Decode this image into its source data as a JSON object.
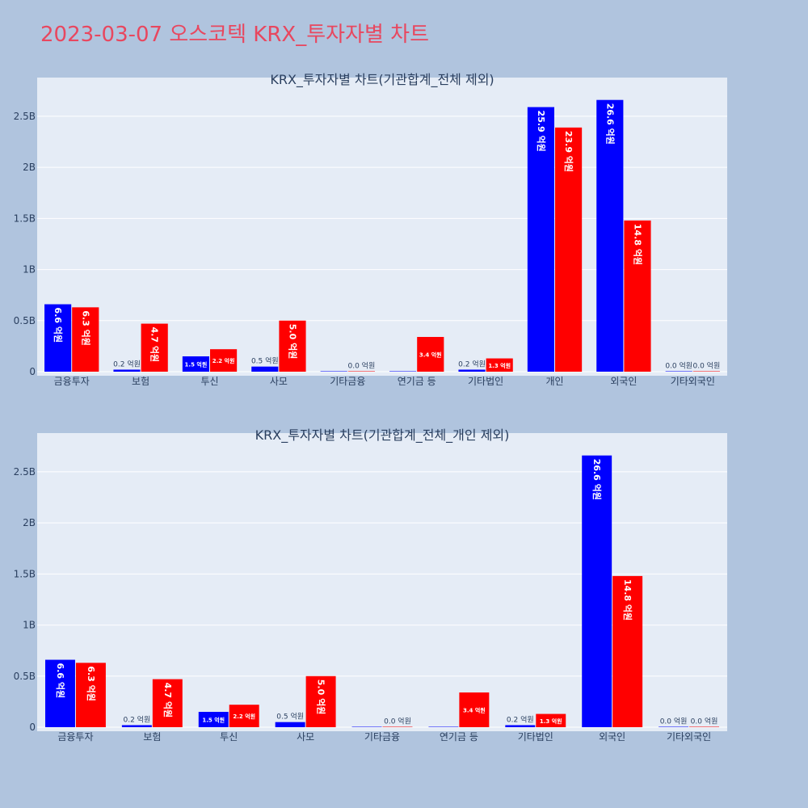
{
  "page_title": "2023-03-07 오스코텍 KRX_투자자별 차트",
  "colors": {
    "buy": "#0000ff",
    "sell": "#ff0000",
    "plot_bg": "#e5ecf6",
    "page_bg": "#b0c4de",
    "title": "#e8475f"
  },
  "chart_data": [
    {
      "type": "bar",
      "title": "KRX_투자자별 차트(기관합계_전체 제외)",
      "categories": [
        "금융투자",
        "보험",
        "투신",
        "사모",
        "기타금융",
        "연기금 등",
        "기타법인",
        "개인",
        "외국인",
        "기타외국인"
      ],
      "series": [
        {
          "values": [
            660000000,
            20000000,
            150000000,
            50000000,
            0,
            0,
            20000000,
            2590000000,
            2660000000,
            0
          ],
          "labels": [
            "6.6 억원",
            "0.2 억원",
            "1.5 억원",
            "0.5 억원",
            "",
            "",
            "0.2 억원",
            "25.9 억원",
            "26.6 억원",
            "0.0 억원"
          ]
        },
        {
          "values": [
            630000000,
            470000000,
            220000000,
            500000000,
            0,
            340000000,
            130000000,
            2390000000,
            1480000000,
            0
          ],
          "labels": [
            "6.3 억원",
            "4.7 억원",
            "2.2 억원",
            "5.0 억원",
            "0.0 억원",
            "3.4 억원",
            "1.3 억원",
            "23.9 억원",
            "14.8 억원",
            "0.0 억원"
          ]
        }
      ],
      "ylim": [
        0,
        2800000000
      ],
      "yticks": [
        {
          "v": 0,
          "label": "0"
        },
        {
          "v": 500000000,
          "label": "0.5B"
        },
        {
          "v": 1000000000,
          "label": "1B"
        },
        {
          "v": 1500000000,
          "label": "1.5B"
        },
        {
          "v": 2000000000,
          "label": "2B"
        },
        {
          "v": 2500000000,
          "label": "2.5B"
        }
      ],
      "grid": true
    },
    {
      "type": "bar",
      "title": "KRX_투자자별 차트(기관합계_전체_개인 제외)",
      "categories": [
        "금융투자",
        "보험",
        "투신",
        "사모",
        "기타금융",
        "연기금 등",
        "기타법인",
        "외국인",
        "기타외국인"
      ],
      "series": [
        {
          "values": [
            660000000,
            20000000,
            150000000,
            50000000,
            0,
            0,
            20000000,
            2660000000,
            0
          ],
          "labels": [
            "6.6 억원",
            "0.2 억원",
            "1.5 억원",
            "0.5 억원",
            "",
            "",
            "0.2 억원",
            "26.6 억원",
            "0.0 억원"
          ]
        },
        {
          "values": [
            630000000,
            470000000,
            220000000,
            500000000,
            0,
            340000000,
            130000000,
            1480000000,
            0
          ],
          "labels": [
            "6.3 억원",
            "4.7 억원",
            "2.2 억원",
            "5.0 억원",
            "0.0 억원",
            "3.4 억원",
            "1.3 억원",
            "14.8 억원",
            "0.0 억원"
          ]
        }
      ],
      "ylim": [
        0,
        2800000000
      ],
      "yticks": [
        {
          "v": 0,
          "label": "0"
        },
        {
          "v": 500000000,
          "label": "0.5B"
        },
        {
          "v": 1000000000,
          "label": "1B"
        },
        {
          "v": 1500000000,
          "label": "1.5B"
        },
        {
          "v": 2000000000,
          "label": "2B"
        },
        {
          "v": 2500000000,
          "label": "2.5B"
        }
      ],
      "grid": true
    }
  ]
}
